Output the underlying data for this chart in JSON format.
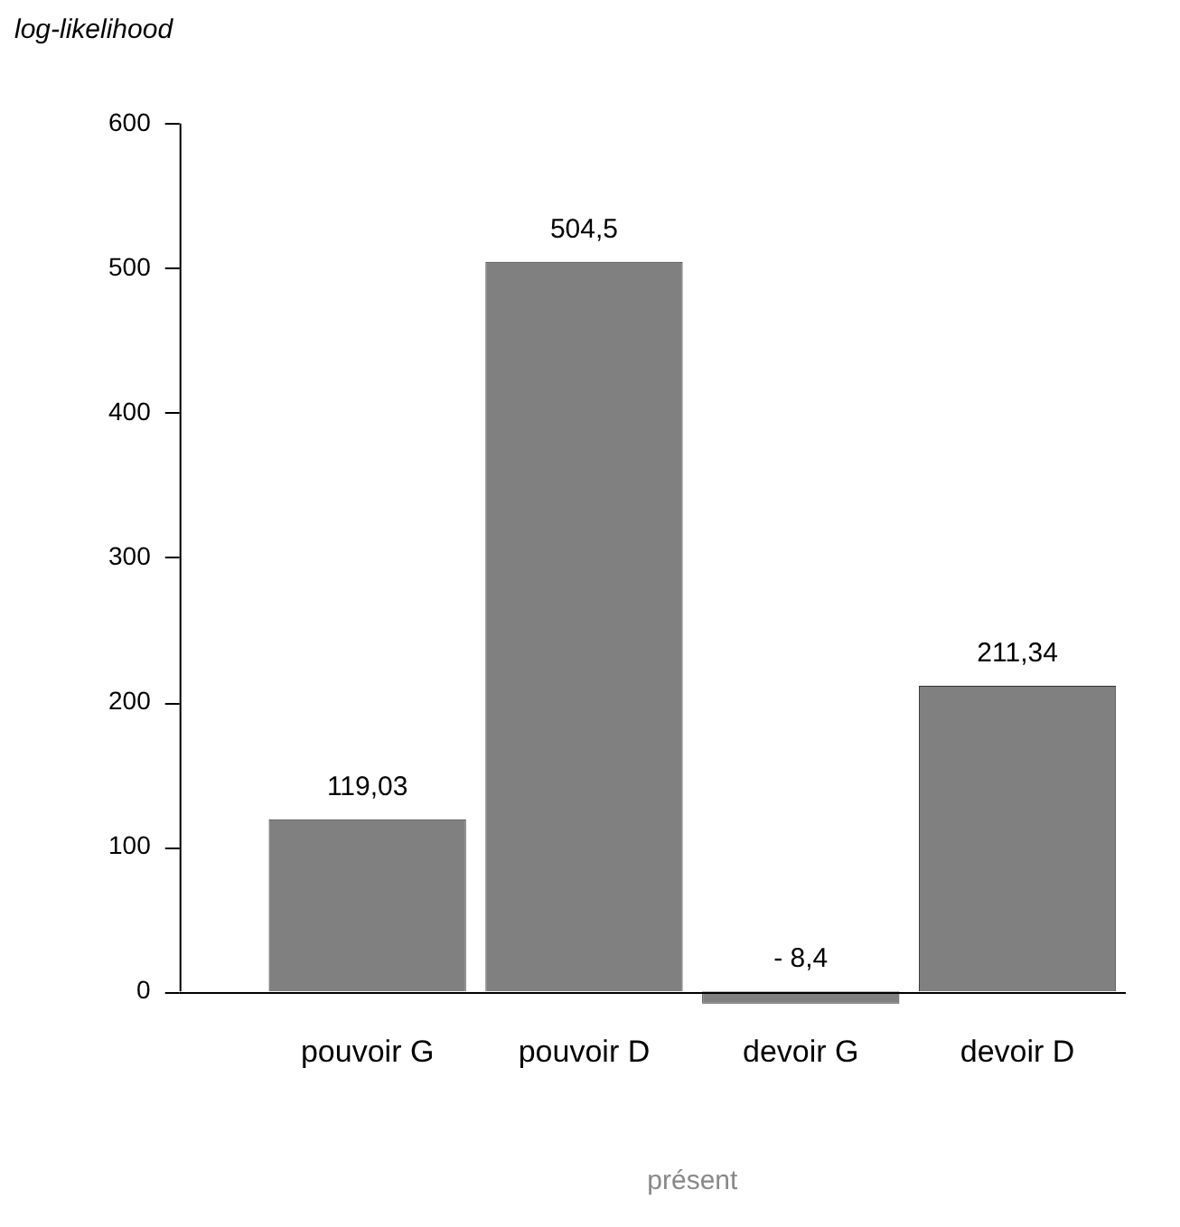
{
  "chart_data": {
    "type": "bar",
    "xlabel": "présent",
    "ylabel": "log-likelihood",
    "categories": [
      "pouvoir G",
      "pouvoir D",
      "devoir G",
      "devoir D"
    ],
    "values": [
      119.03,
      504.5,
      -8.4,
      211.34
    ],
    "value_labels": [
      "119,03",
      "504,5",
      "- 8,4",
      "211,34"
    ],
    "color": "#808080",
    "ylim": [
      -10,
      600
    ],
    "yticks": [
      0,
      100,
      200,
      300,
      400,
      500,
      600
    ],
    "grid": false,
    "legend": false
  }
}
